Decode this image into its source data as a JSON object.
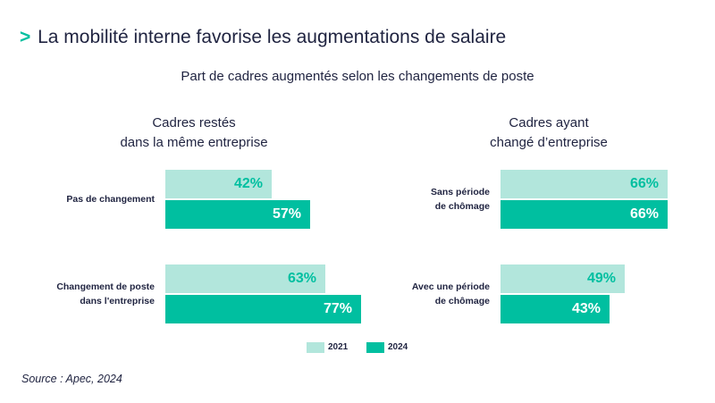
{
  "header": {
    "chevron": ">",
    "title": "La mobilité interne favorise les augmentations de salaire",
    "subtitle": "Part de cadres augmentés selon les changements de poste"
  },
  "colors": {
    "s2021": "#b2e6dc",
    "s2024": "#00bfa0",
    "text": "#1f2340"
  },
  "chart_data": {
    "type": "bar",
    "orientation": "horizontal",
    "title": "Part de cadres augmentés selon les changements de poste",
    "value_unit": "%",
    "xlim": [
      0,
      100
    ],
    "series_names": [
      "2021",
      "2024"
    ],
    "panels": [
      {
        "title_line1": "Cadres restés",
        "title_line2": "dans la même entreprise",
        "categories": [
          {
            "line1": "Pas de changement",
            "line2": "",
            "v2021": 42,
            "v2024": 57
          },
          {
            "line1": "Changement de poste",
            "line2": "dans l'entreprise",
            "v2021": 63,
            "v2024": 77
          }
        ]
      },
      {
        "title_line1": "Cadres ayant",
        "title_line2": "changé d’entreprise",
        "categories": [
          {
            "line1": "Sans période",
            "line2": "de chômage",
            "v2021": 66,
            "v2024": 66
          },
          {
            "line1": "Avec une période",
            "line2": "de chômage",
            "v2021": 49,
            "v2024": 43
          }
        ]
      }
    ]
  },
  "legend": {
    "label_2021": "2021",
    "label_2024": "2024"
  },
  "source": "Source : Apec, 2024"
}
